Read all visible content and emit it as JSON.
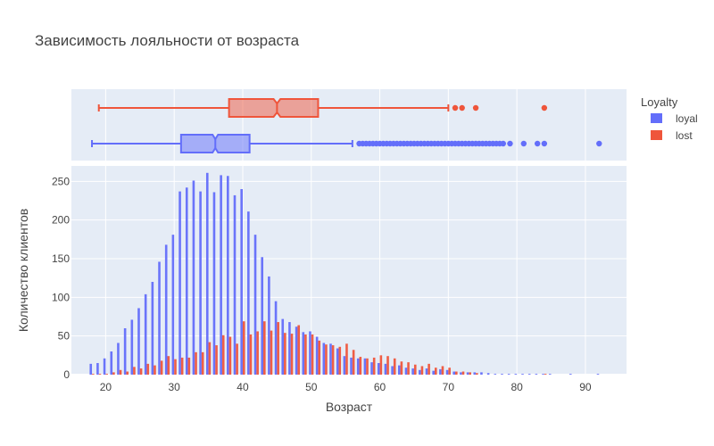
{
  "chart_data": {
    "type": "bar",
    "title": "Зависимость лояльности от возраста",
    "xlabel": "Возраст",
    "ylabel": "Количество клиентов",
    "xlim": [
      15,
      96
    ],
    "ylim": [
      0,
      270
    ],
    "x_ticks": [
      20,
      30,
      40,
      50,
      60,
      70,
      80,
      90
    ],
    "y_ticks": [
      0,
      50,
      100,
      150,
      200,
      250
    ],
    "grid": true,
    "legend": {
      "title": "Loyalty",
      "placement": "top-right"
    },
    "colors": {
      "loyal": "#636efa",
      "lost": "#ef553b",
      "plot_bg": "#e5ecf6"
    },
    "series": [
      {
        "name": "loyal",
        "x": [
          18,
          19,
          20,
          21,
          22,
          23,
          24,
          25,
          26,
          27,
          28,
          29,
          30,
          31,
          32,
          33,
          34,
          35,
          36,
          37,
          38,
          39,
          40,
          41,
          42,
          43,
          44,
          45,
          46,
          47,
          48,
          49,
          50,
          51,
          52,
          53,
          54,
          55,
          56,
          57,
          58,
          59,
          60,
          61,
          62,
          63,
          64,
          65,
          66,
          67,
          68,
          69,
          70,
          71,
          72,
          73,
          74,
          75,
          76,
          77,
          78,
          79,
          80,
          81,
          82,
          83,
          84,
          85,
          88,
          92
        ],
        "values": [
          14,
          15,
          21,
          30,
          41,
          60,
          71,
          86,
          104,
          120,
          146,
          168,
          181,
          237,
          242,
          251,
          237,
          261,
          236,
          258,
          257,
          232,
          240,
          211,
          181,
          152,
          127,
          95,
          72,
          68,
          62,
          55,
          56,
          49,
          41,
          40,
          34,
          24,
          22,
          21,
          21,
          16,
          15,
          14,
          11,
          12,
          9,
          8,
          6,
          8,
          5,
          7,
          6,
          4,
          3,
          3,
          3,
          3,
          2,
          1,
          1,
          1,
          1,
          1,
          1,
          1,
          1,
          1,
          1,
          1
        ],
        "box": {
          "min": 18,
          "q1": 31,
          "median": 36,
          "q3": 41,
          "max": 56,
          "notch_low": 35.6,
          "notch_high": 36.4,
          "outliers": [
            57,
            57.5,
            58,
            58.5,
            59,
            59.5,
            60,
            60.5,
            61,
            61.5,
            62,
            62.5,
            63,
            63.5,
            64,
            64.5,
            65,
            65.5,
            66,
            66.5,
            67,
            67.5,
            68,
            68.5,
            69,
            69.5,
            70,
            70.5,
            71,
            71.5,
            72,
            72.5,
            73,
            73.5,
            74,
            74.5,
            75,
            75.5,
            76,
            76.5,
            77,
            77.5,
            78,
            79,
            81,
            83,
            84,
            92
          ]
        }
      },
      {
        "name": "lost",
        "x": [
          18,
          19,
          20,
          21,
          22,
          23,
          24,
          25,
          26,
          27,
          28,
          29,
          30,
          31,
          32,
          33,
          34,
          35,
          36,
          37,
          38,
          39,
          40,
          41,
          42,
          43,
          44,
          45,
          46,
          47,
          48,
          49,
          50,
          51,
          52,
          53,
          54,
          55,
          56,
          57,
          58,
          59,
          60,
          61,
          62,
          63,
          64,
          65,
          66,
          67,
          68,
          69,
          70,
          71,
          72,
          73,
          74,
          84
        ],
        "values": [
          1,
          1,
          1,
          3,
          6,
          4,
          10,
          8,
          14,
          12,
          18,
          24,
          20,
          22,
          22,
          29,
          29,
          42,
          38,
          51,
          49,
          40,
          69,
          52,
          56,
          69,
          57,
          68,
          54,
          53,
          64,
          52,
          52,
          44,
          39,
          38,
          36,
          40,
          32,
          23,
          21,
          22,
          25,
          24,
          21,
          17,
          16,
          13,
          11,
          14,
          9,
          11,
          9,
          4,
          4,
          3,
          2,
          1
        ],
        "box": {
          "min": 19,
          "q1": 38,
          "median": 45,
          "q3": 51,
          "max": 70,
          "notch_low": 44.5,
          "notch_high": 45.5,
          "outliers": [
            71,
            72,
            74,
            84
          ]
        }
      }
    ]
  }
}
